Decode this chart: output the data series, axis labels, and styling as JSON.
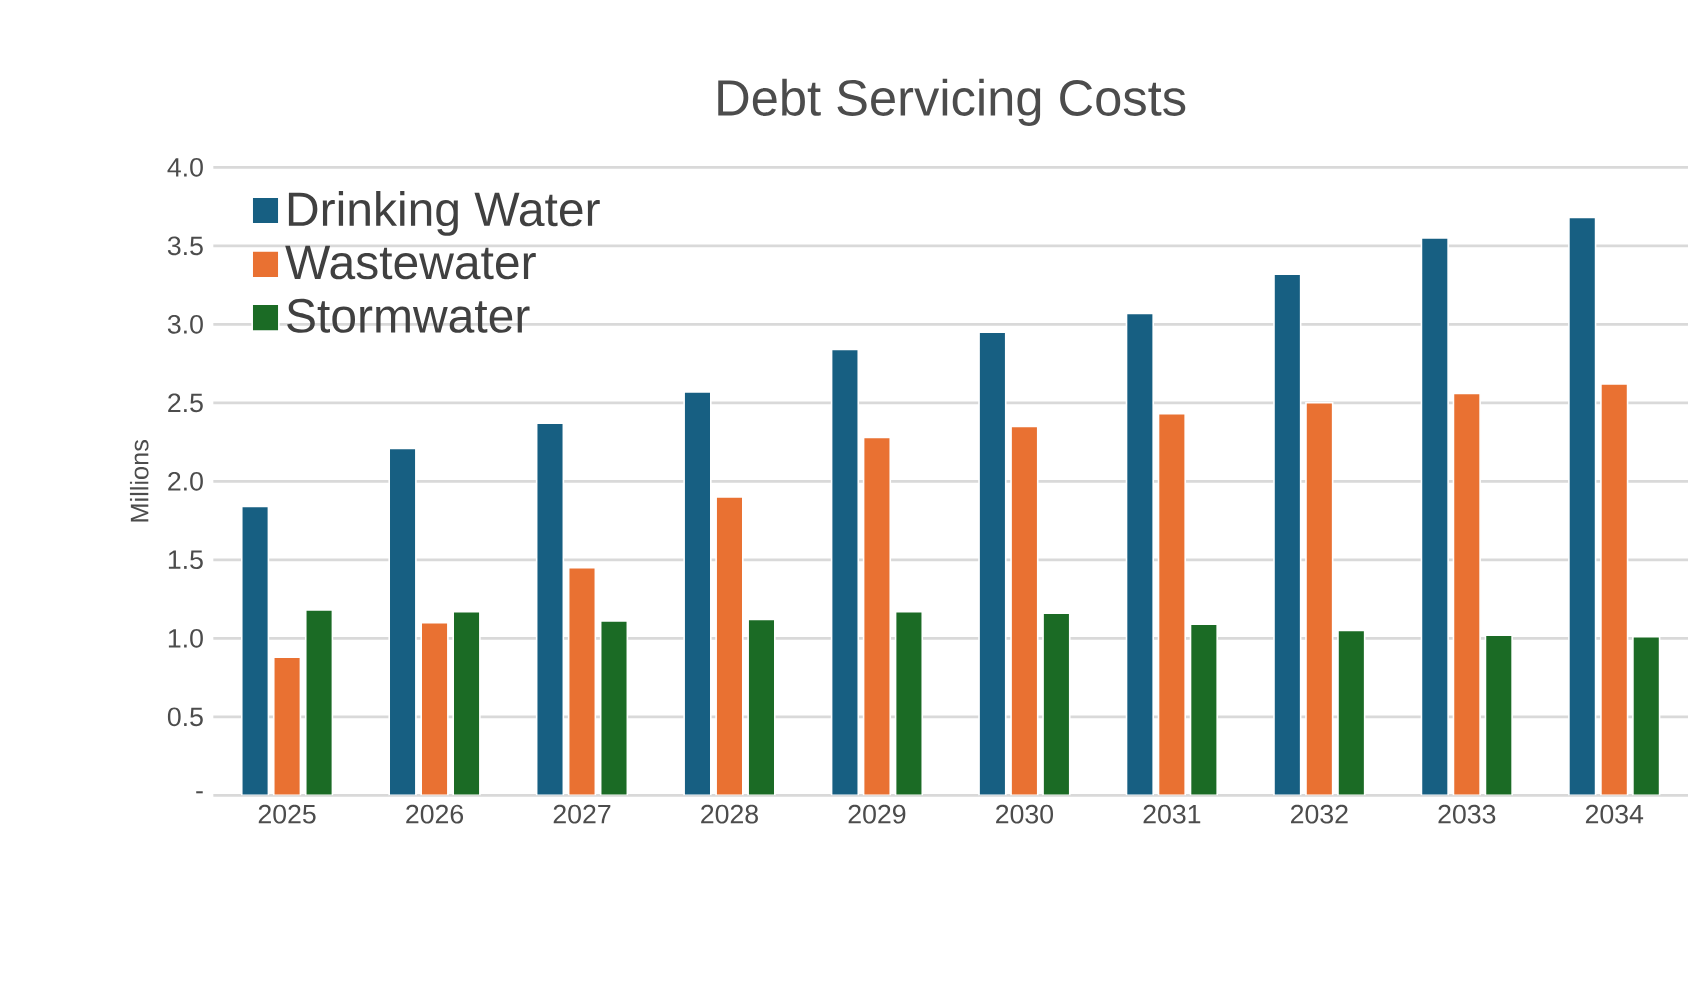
{
  "chart_data": {
    "type": "bar",
    "title": "Debt Servicing Costs",
    "ylabel": "Millions",
    "categories": [
      "2025",
      "2026",
      "2027",
      "2028",
      "2029",
      "2030",
      "2031",
      "2032",
      "2033",
      "2034"
    ],
    "series": [
      {
        "name": "Drinking Water",
        "color": "#175f82",
        "values": [
          1.84,
          2.21,
          2.37,
          2.57,
          2.84,
          2.95,
          3.07,
          3.32,
          3.55,
          3.68
        ]
      },
      {
        "name": "Wastewater",
        "color": "#e97132",
        "values": [
          0.88,
          1.1,
          1.45,
          1.9,
          2.28,
          2.35,
          2.43,
          2.5,
          2.56,
          2.62
        ]
      },
      {
        "name": "Stormwater",
        "color": "#1b6b25",
        "values": [
          1.18,
          1.17,
          1.11,
          1.12,
          1.17,
          1.16,
          1.09,
          1.05,
          1.02,
          1.01
        ]
      }
    ],
    "ylim": [
      0,
      4.0
    ],
    "yticks": [
      {
        "value": 0,
        "label": "-"
      },
      {
        "value": 0.5,
        "label": "0.5"
      },
      {
        "value": 1,
        "label": "1.0"
      },
      {
        "value": 1.5,
        "label": "1.5"
      },
      {
        "value": 2,
        "label": "2.0"
      },
      {
        "value": 2.5,
        "label": "2.5"
      },
      {
        "value": 3,
        "label": "3.0"
      },
      {
        "value": 3.5,
        "label": "3.5"
      },
      {
        "value": 4,
        "label": "4.0"
      }
    ],
    "grid": "y",
    "legend": "top left"
  }
}
